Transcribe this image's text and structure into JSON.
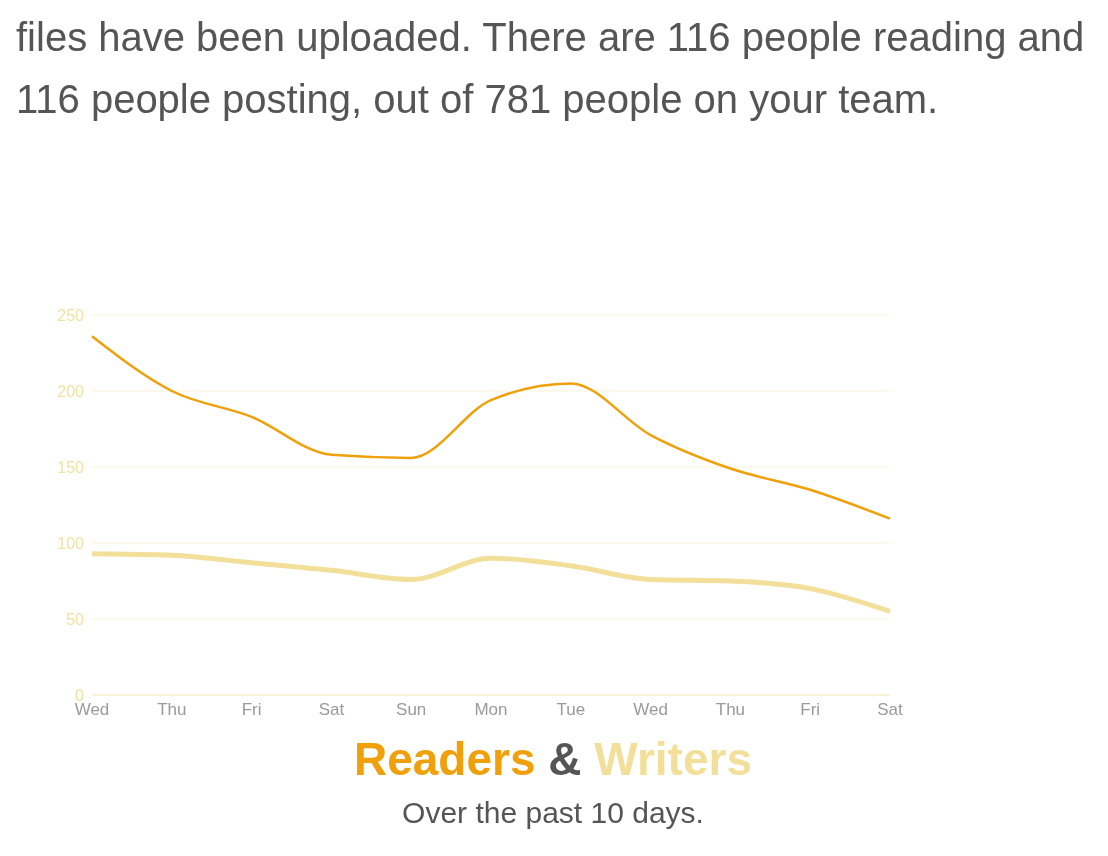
{
  "chart_data": {
    "type": "line",
    "title": "Readers & Writers",
    "subtitle": "Over the past 10 days.",
    "annotations": [
      "files have been uploaded. There are 116 people reading and 116 people posting, out of 781 people on your team."
    ],
    "categories": [
      "Wed",
      "Thu",
      "Fri",
      "Sat",
      "Sun",
      "Mon",
      "Tue",
      "Wed",
      "Thu",
      "Fri",
      "Sat"
    ],
    "series": [
      {
        "color": "#efa00b",
        "values": [
          236,
          200,
          183,
          158,
          156,
          194,
          205,
          171,
          149,
          135,
          116
        ]
      },
      {
        "color": "#f2df9a",
        "values": [
          93,
          92,
          87,
          82,
          76,
          90,
          85,
          76,
          75,
          70,
          55
        ]
      }
    ],
    "ylim": [
      0,
      250
    ],
    "yticks": [
      0,
      50,
      100,
      150,
      200,
      250
    ],
    "grid": "y",
    "marker": "none",
    "line_style": "solid"
  }
}
